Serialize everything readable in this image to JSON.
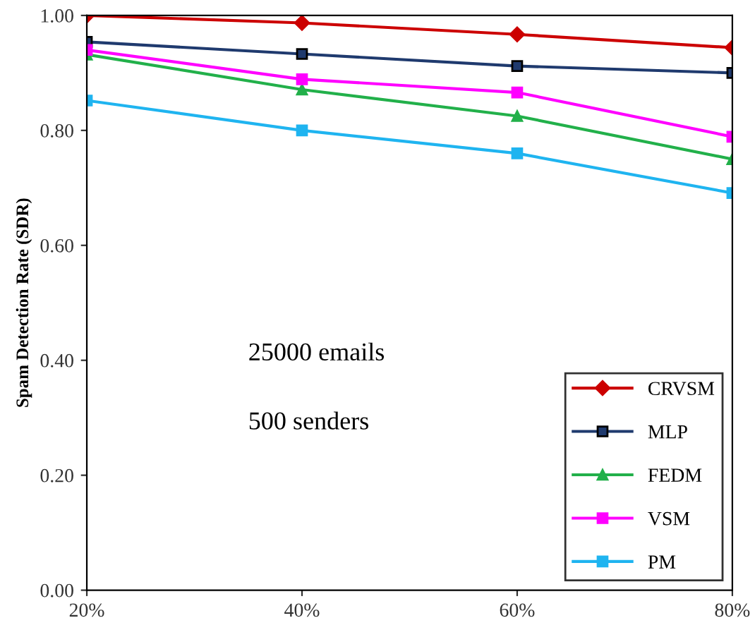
{
  "chart_data": {
    "type": "line",
    "ylabel": "Spam Detection Rate (SDR)",
    "x": [
      20,
      40,
      60,
      80
    ],
    "xlim": [
      20,
      80
    ],
    "xticks": [
      {
        "value": 20,
        "label": "20%"
      },
      {
        "value": 40,
        "label": "40%"
      },
      {
        "value": 60,
        "label": "60%"
      },
      {
        "value": 80,
        "label": "80%"
      }
    ],
    "ylim": [
      0,
      1
    ],
    "yticks": [
      {
        "value": 0,
        "label": "0.00"
      },
      {
        "value": 0.2,
        "label": "0.20"
      },
      {
        "value": 0.4,
        "label": "0.40"
      },
      {
        "value": 0.6,
        "label": "0.60"
      },
      {
        "value": 0.8,
        "label": "0.80"
      },
      {
        "value": 1.0,
        "label": "1.00"
      }
    ],
    "grid": false,
    "legend": "bottom right",
    "annotations": [
      "25000 emails",
      "500 senders"
    ],
    "series": [
      {
        "name": "CRVSM",
        "color": "#cc0000",
        "marker": "diamond",
        "values": [
          1.0,
          0.987,
          0.967,
          0.944
        ]
      },
      {
        "name": "MLP",
        "color": "#1f3a6e",
        "marker": "square",
        "values": [
          0.954,
          0.933,
          0.912,
          0.9
        ]
      },
      {
        "name": "FEDM",
        "color": "#22b04a",
        "marker": "triangle",
        "values": [
          0.932,
          0.871,
          0.825,
          0.75
        ]
      },
      {
        "name": "VSM",
        "color": "#ff00ff",
        "marker": "square",
        "values": [
          0.94,
          0.889,
          0.866,
          0.789
        ]
      },
      {
        "name": "PM",
        "color": "#1fb4f0",
        "marker": "square",
        "values": [
          0.852,
          0.8,
          0.76,
          0.691
        ]
      }
    ]
  }
}
